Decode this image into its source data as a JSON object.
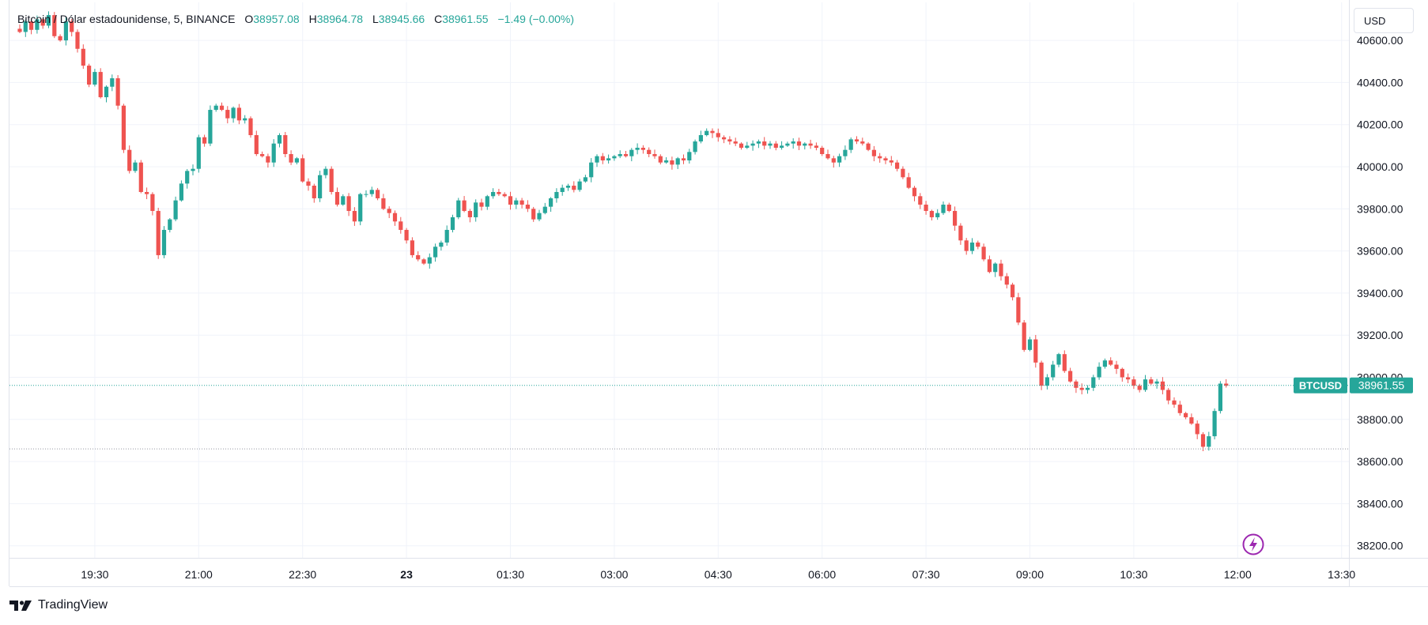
{
  "legend": {
    "symbol": "Bitcoin / Dólar estadounidense, 5, BINANCE",
    "o_label": "O",
    "o": "38957.08",
    "h_label": "H",
    "h": "38964.78",
    "l_label": "L",
    "l": "38945.66",
    "c_label": "C",
    "c": "38961.55",
    "change": "−1.49 (−0.00%)"
  },
  "currency_button": "USD",
  "footer": {
    "brand": "TradingView"
  },
  "colors": {
    "up": "#26a69a",
    "down": "#ef5350",
    "grid": "#f0f3fa",
    "axis_border": "#e0e3eb",
    "accent": "#9c27b0"
  },
  "icons": {
    "replay": "lightning-icon",
    "logo": "tradingview-logo-icon"
  },
  "chart_data": {
    "type": "candlestick",
    "symbol": "BTCUSD",
    "interval_minutes": 5,
    "last_price": 38961.55,
    "last_price_label": "38961.55",
    "symbol_label": "BTCUSD",
    "low_line": 38660,
    "y_ticks": [
      "40600.00",
      "40400.00",
      "40200.00",
      "40000.00",
      "39800.00",
      "39600.00",
      "39400.00",
      "39200.00",
      "39000.00",
      "38800.00",
      "38600.00",
      "38400.00",
      "38200.00"
    ],
    "x_ticks": [
      {
        "t": "19:30",
        "bold": false
      },
      {
        "t": "21:00",
        "bold": false
      },
      {
        "t": "22:30",
        "bold": false
      },
      {
        "t": "23",
        "bold": true
      },
      {
        "t": "01:30",
        "bold": false
      },
      {
        "t": "03:00",
        "bold": false
      },
      {
        "t": "04:30",
        "bold": false
      },
      {
        "t": "06:00",
        "bold": false
      },
      {
        "t": "07:30",
        "bold": false
      },
      {
        "t": "09:00",
        "bold": false
      },
      {
        "t": "10:30",
        "bold": false
      },
      {
        "t": "12:00",
        "bold": false
      },
      {
        "t": "13:30",
        "bold": false
      }
    ],
    "start_time": "18:25",
    "candle_closes": [
      40640,
      40690,
      40650,
      40700,
      40670,
      40720,
      40620,
      40600,
      40690,
      40640,
      40560,
      40480,
      40390,
      40450,
      40330,
      40380,
      40420,
      40290,
      40080,
      39980,
      40020,
      39880,
      39870,
      39790,
      39580,
      39700,
      39750,
      39840,
      39920,
      39980,
      39990,
      40140,
      40110,
      40270,
      40290,
      40270,
      40230,
      40280,
      40220,
      40230,
      40150,
      40060,
      40050,
      40020,
      40110,
      40150,
      40060,
      40020,
      40040,
      39930,
      39910,
      39850,
      39960,
      39990,
      39880,
      39820,
      39860,
      39790,
      39740,
      39870,
      39870,
      39890,
      39850,
      39800,
      39780,
      39740,
      39700,
      39650,
      39580,
      39560,
      39540,
      39570,
      39620,
      39640,
      39700,
      39760,
      39840,
      39790,
      39760,
      39830,
      39810,
      39860,
      39880,
      39870,
      39860,
      39820,
      39840,
      39820,
      39800,
      39750,
      39780,
      39810,
      39850,
      39880,
      39900,
      39910,
      39890,
      39930,
      39950,
      40020,
      40050,
      40030,
      40040,
      40050,
      40060,
      40050,
      40080,
      40090,
      40080,
      40060,
      40050,
      40020,
      40030,
      40010,
      40040,
      40030,
      40070,
      40120,
      40150,
      40170,
      40160,
      40140,
      40130,
      40120,
      40110,
      40090,
      40100,
      40110,
      40120,
      40100,
      40110,
      40090,
      40100,
      40110,
      40120,
      40100,
      40110,
      40100,
      40090,
      40060,
      40040,
      40020,
      40050,
      40080,
      40130,
      40120,
      40110,
      40080,
      40050,
      40040,
      40030,
      40020,
      39990,
      39950,
      39900,
      39860,
      39820,
      39790,
      39760,
      39780,
      39820,
      39790,
      39720,
      39650,
      39600,
      39640,
      39620,
      39560,
      39500,
      39540,
      39480,
      39440,
      39380,
      39260,
      39130,
      39180,
      39070,
      38960,
      39000,
      39060,
      39110,
      39030,
      38980,
      38950,
      38940,
      38950,
      39000,
      39050,
      39080,
      39060,
      39040,
      39000,
      38990,
      38960,
      38940,
      38990,
      38970,
      38980,
      38940,
      38890,
      38870,
      38830,
      38810,
      38780,
      38730,
      38670,
      38720,
      38840,
      38970,
      38960
    ]
  }
}
